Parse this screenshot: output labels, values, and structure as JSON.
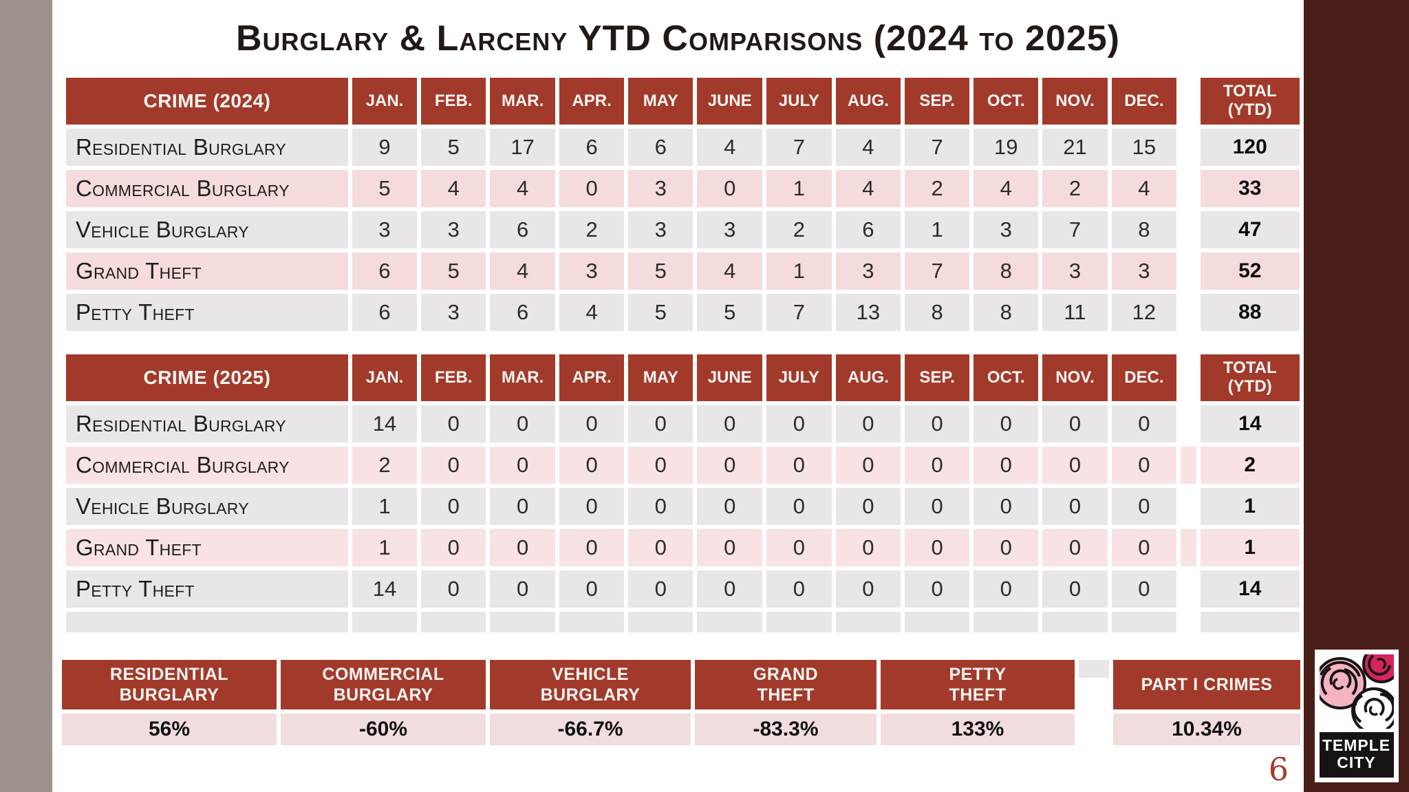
{
  "title": "Burglary & Larceny YTD Comparisons (2024 to 2025)",
  "page_number": "6",
  "months": [
    "JAN.",
    "FEB.",
    "MAR.",
    "APR.",
    "MAY",
    "JUNE",
    "JULY",
    "AUG.",
    "SEP.",
    "OCT.",
    "NOV.",
    "DEC."
  ],
  "total_header": "TOTAL (YTD)",
  "tables": [
    {
      "header": "CRIME (2024)",
      "empty_row": false,
      "rows": [
        {
          "label": "Residential Burglary",
          "values": [
            "9",
            "5",
            "17",
            "6",
            "6",
            "4",
            "7",
            "4",
            "7",
            "19",
            "21",
            "15"
          ],
          "total": "120"
        },
        {
          "label": "Commercial Burglary",
          "values": [
            "5",
            "4",
            "4",
            "0",
            "3",
            "0",
            "1",
            "4",
            "2",
            "4",
            "2",
            "4"
          ],
          "total": "33"
        },
        {
          "label": "Vehicle Burglary",
          "values": [
            "3",
            "3",
            "6",
            "2",
            "3",
            "3",
            "2",
            "6",
            "1",
            "3",
            "7",
            "8"
          ],
          "total": "47"
        },
        {
          "label": "Grand Theft",
          "values": [
            "6",
            "5",
            "4",
            "3",
            "5",
            "4",
            "1",
            "3",
            "7",
            "8",
            "3",
            "3"
          ],
          "total": "52"
        },
        {
          "label": "Petty Theft",
          "values": [
            "6",
            "3",
            "6",
            "4",
            "5",
            "5",
            "7",
            "13",
            "8",
            "8",
            "11",
            "12"
          ],
          "total": "88"
        }
      ]
    },
    {
      "header": "CRIME (2025)",
      "empty_row": true,
      "rows": [
        {
          "label": "Residential Burglary",
          "values": [
            "14",
            "0",
            "0",
            "0",
            "0",
            "0",
            "0",
            "0",
            "0",
            "0",
            "0",
            "0"
          ],
          "total": "14"
        },
        {
          "label": "Commercial Burglary",
          "values": [
            "2",
            "0",
            "0",
            "0",
            "0",
            "0",
            "0",
            "0",
            "0",
            "0",
            "0",
            "0"
          ],
          "total": "2"
        },
        {
          "label": "Vehicle Burglary",
          "values": [
            "1",
            "0",
            "0",
            "0",
            "0",
            "0",
            "0",
            "0",
            "0",
            "0",
            "0",
            "0"
          ],
          "total": "1"
        },
        {
          "label": "Grand Theft",
          "values": [
            "1",
            "0",
            "0",
            "0",
            "0",
            "0",
            "0",
            "0",
            "0",
            "0",
            "0",
            "0"
          ],
          "total": "1"
        },
        {
          "label": "Petty Theft",
          "values": [
            "14",
            "0",
            "0",
            "0",
            "0",
            "0",
            "0",
            "0",
            "0",
            "0",
            "0",
            "0"
          ],
          "total": "14"
        }
      ]
    }
  ],
  "summary": {
    "items": [
      {
        "label": "RESIDENTIAL\nBURGLARY",
        "value": "56%"
      },
      {
        "label": "COMMERCIAL\nBURGLARY",
        "value": "-60%"
      },
      {
        "label": "VEHICLE\nBURGLARY",
        "value": "-66.7%"
      },
      {
        "label": "GRAND\nTHEFT",
        "value": "-83.3%"
      },
      {
        "label": "PETTY\nTHEFT",
        "value": "133%"
      },
      {
        "label": "PART I CRIMES",
        "value": "10.34%"
      }
    ]
  },
  "logo": {
    "line1": "TEMPLE",
    "line2": "CITY"
  },
  "colors": {
    "header_maroon": "#A23A2B",
    "band_maroon": "#4A1E19",
    "left_bar_gray": "#9C938F",
    "row_gray": "#E8E6E6",
    "row_pink_2024": "#F6DBDC",
    "row_pink_2025": "#F8E2E3",
    "summary_value_pink": "#F1DDDD",
    "page_number_red": "#A63A2A",
    "logo_pink": "#F4B3C0",
    "logo_magenta": "#D6245E"
  }
}
